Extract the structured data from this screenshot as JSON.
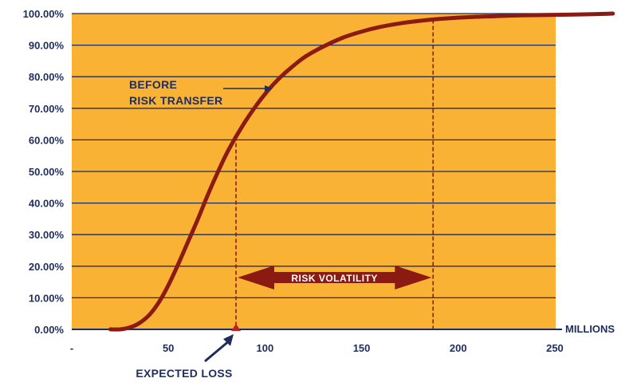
{
  "chart_data": {
    "type": "line",
    "title": "",
    "xlabel": "MILLIONS",
    "ylabel": "",
    "xlim": [
      0,
      250
    ],
    "ylim": [
      0,
      100
    ],
    "x_ticks": [
      {
        "value": 0,
        "label": "-"
      },
      {
        "value": 50,
        "label": "50"
      },
      {
        "value": 100,
        "label": "100"
      },
      {
        "value": 150,
        "label": "150"
      },
      {
        "value": 200,
        "label": "200"
      },
      {
        "value": 250,
        "label": "250"
      }
    ],
    "y_ticks": [
      {
        "value": 0,
        "label": "0.00%"
      },
      {
        "value": 10,
        "label": "10.00%"
      },
      {
        "value": 20,
        "label": "20.00%"
      },
      {
        "value": 30,
        "label": "30.00%"
      },
      {
        "value": 40,
        "label": "40.00%"
      },
      {
        "value": 50,
        "label": "50.00%"
      },
      {
        "value": 60,
        "label": "60.00%"
      },
      {
        "value": 70,
        "label": "70.00%"
      },
      {
        "value": 80,
        "label": "80.00%"
      },
      {
        "value": 90,
        "label": "90.00%"
      },
      {
        "value": 100,
        "label": "100.00%"
      }
    ],
    "grid": "horizontal",
    "colors": {
      "background": "#f9b233",
      "line": "#8b1a12",
      "text": "#1f2d5c",
      "grid": "#1f2d5c"
    },
    "series": [
      {
        "x": [
          20,
          25,
          30,
          35,
          40,
          45,
          50,
          55,
          60,
          65,
          70,
          75,
          80,
          85,
          90,
          95,
          100,
          105,
          110,
          120,
          130,
          140,
          150,
          160,
          170,
          180,
          190,
          200,
          210,
          220,
          230,
          240,
          250,
          260,
          270,
          280
        ],
        "values": [
          0,
          0,
          0.6,
          2,
          4.5,
          8.5,
          14,
          20.5,
          27.5,
          34.5,
          42,
          49,
          55.5,
          61,
          66,
          70.5,
          74.5,
          78,
          81,
          86,
          89.5,
          92.3,
          94.3,
          95.8,
          96.9,
          97.7,
          98.3,
          98.7,
          99,
          99.2,
          99.4,
          99.5,
          99.6,
          99.7,
          99.8,
          100
        ]
      }
    ],
    "annotations": {
      "before_label_line1": "BEFORE",
      "before_label_line2": "RISK TRANSFER",
      "expected_loss_label": "EXPECTED LOSS",
      "expected_loss_x": 85,
      "volatility_label": "RISK VOLATILITY",
      "volatility_end_x": 187
    }
  }
}
